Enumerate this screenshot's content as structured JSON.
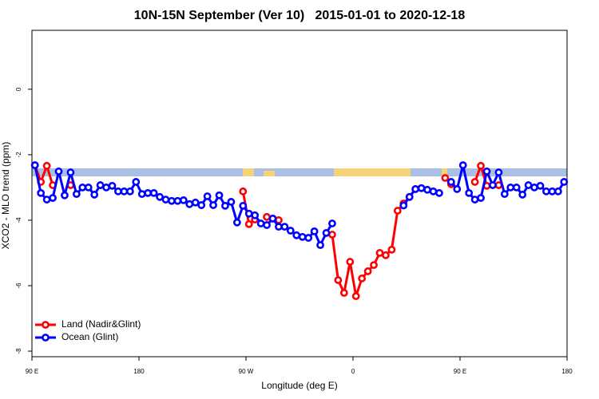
{
  "chart_data": {
    "type": "line",
    "title": "10N-15N September (Ver 10)   2015-01-01 to 2020-12-18",
    "x_label": "Longitude (deg E)",
    "y_label": "XCO2 - MLO trend (ppm)",
    "x": [
      92.5,
      97.5,
      102.5,
      107.5,
      112.5,
      117.5,
      122.5,
      127.5,
      132.5,
      137.5,
      142.5,
      147.5,
      152.5,
      157.5,
      162.5,
      167.5,
      172.5,
      177.5,
      182.5,
      187.5,
      192.5,
      197.5,
      202.5,
      207.5,
      212.5,
      217.5,
      222.5,
      227.5,
      232.5,
      237.5,
      242.5,
      247.5,
      252.5,
      257.5,
      262.5,
      267.5,
      272.5,
      277.5,
      282.5,
      287.5,
      292.5,
      297.5,
      302.5,
      307.5,
      312.5,
      317.5,
      322.5,
      327.5,
      332.5,
      337.5,
      342.5,
      347.5,
      352.5,
      357.5,
      362.5,
      367.5,
      372.5,
      377.5,
      382.5,
      387.5,
      392.5,
      397.5,
      402.5,
      407.5,
      412.5,
      417.5,
      422.5,
      427.5,
      432.5,
      437.5,
      442.5,
      447.5,
      452.5,
      457.5,
      462.5,
      467.5,
      472.5,
      477.5,
      482.5,
      487.5,
      492.5,
      497.5,
      502.5,
      507.5,
      512.5,
      517.5,
      522.5,
      527.5,
      532.5,
      537.5
    ],
    "series": [
      {
        "name": "Land (Nadir&Glint)",
        "color": "#ff0000",
        "values": [
          -2.32,
          -2.83,
          -2.34,
          -2.93,
          null,
          null,
          -2.93,
          null,
          null,
          null,
          null,
          null,
          null,
          null,
          null,
          null,
          null,
          null,
          null,
          null,
          null,
          null,
          null,
          null,
          null,
          null,
          null,
          null,
          null,
          null,
          null,
          null,
          null,
          null,
          null,
          -3.12,
          -4.12,
          -3.98,
          null,
          -3.9,
          -3.95,
          -4.0,
          null,
          null,
          null,
          null,
          null,
          null,
          null,
          null,
          -4.44,
          -5.83,
          -6.22,
          -5.27,
          -6.32,
          -5.78,
          -5.56,
          -5.37,
          -5.0,
          -5.07,
          -4.9,
          -3.71,
          -3.49,
          -3.29,
          -3.05,
          null,
          null,
          null,
          null,
          -2.71,
          -2.9,
          null,
          null,
          null,
          -2.83,
          -2.34,
          -2.95,
          null,
          -2.93,
          null,
          null,
          null,
          null,
          null,
          null,
          null,
          null,
          null,
          null,
          null
        ]
      },
      {
        "name": "Ocean (Glint)",
        "color": "#0000ff",
        "values": [
          -2.32,
          -3.17,
          -3.37,
          -3.32,
          -2.51,
          -3.24,
          -2.54,
          -3.2,
          -3.0,
          -3.0,
          -3.22,
          -2.93,
          -3.0,
          -2.95,
          -3.12,
          -3.12,
          -3.12,
          -2.83,
          -3.2,
          -3.17,
          -3.17,
          -3.29,
          -3.37,
          -3.41,
          -3.41,
          -3.39,
          -3.51,
          -3.46,
          -3.54,
          -3.27,
          -3.54,
          -3.24,
          -3.56,
          -3.44,
          -4.07,
          -3.56,
          -3.8,
          -3.85,
          -4.1,
          -4.15,
          -3.95,
          -4.2,
          -4.2,
          -4.32,
          -4.46,
          -4.51,
          -4.54,
          -4.34,
          -4.76,
          -4.39,
          -4.1,
          null,
          null,
          null,
          null,
          null,
          null,
          null,
          null,
          null,
          null,
          null,
          -3.55,
          -3.29,
          -3.05,
          -3.02,
          -3.07,
          -3.12,
          -3.17,
          null,
          -2.83,
          -3.05,
          -2.32,
          -3.17,
          -3.37,
          -3.32,
          -2.51,
          -2.93,
          -2.54,
          -3.2,
          -3.0,
          -3.0,
          -3.22,
          -2.93,
          -3.0,
          -2.95,
          -3.12,
          -3.12,
          -3.12,
          -2.83
        ]
      }
    ],
    "xlim": [
      90,
      540
    ],
    "xticks": [
      {
        "value": 90,
        "label": "90 E"
      },
      180,
      {
        "value": 270,
        "label": "90 W"
      },
      {
        "value": 360,
        "label": "0"
      },
      {
        "value": 450,
        "label": "90 E"
      },
      {
        "value": 540,
        "label": "180"
      }
    ],
    "ylim": [
      -8.17,
      1.8
    ],
    "yticks": [
      0,
      -2,
      -4,
      -6,
      -8
    ],
    "legend": "bottomleft"
  }
}
